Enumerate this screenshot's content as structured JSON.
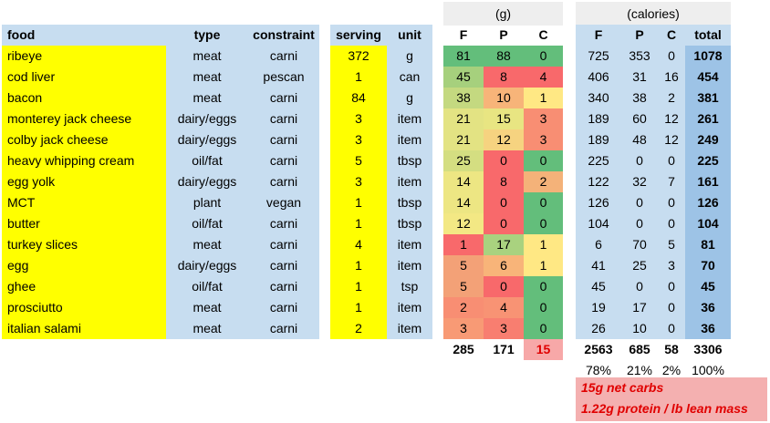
{
  "headers": {
    "food": "food",
    "type": "type",
    "constraint": "constraint",
    "serving": "serving",
    "unit": "unit",
    "grams_group": "(g)",
    "calories_group": "(calories)",
    "gF": "F",
    "gP": "P",
    "gC": "C",
    "cF": "F",
    "cP": "P",
    "cC": "C",
    "total": "total"
  },
  "rows": [
    {
      "food": "ribeye",
      "type": "meat",
      "constraint": "carni",
      "serving": "372",
      "unit": "g",
      "gF": "81",
      "gP": "88",
      "gC": "0",
      "cF": "725",
      "cP": "353",
      "cC": "0",
      "total": "1078"
    },
    {
      "food": "cod liver",
      "type": "meat",
      "constraint": "pescan",
      "serving": "1",
      "unit": "can",
      "gF": "45",
      "gP": "8",
      "gC": "4",
      "cF": "406",
      "cP": "31",
      "cC": "16",
      "total": "454"
    },
    {
      "food": "bacon",
      "type": "meat",
      "constraint": "carni",
      "serving": "84",
      "unit": "g",
      "gF": "38",
      "gP": "10",
      "gC": "1",
      "cF": "340",
      "cP": "38",
      "cC": "2",
      "total": "381"
    },
    {
      "food": "monterey jack cheese",
      "type": "dairy/eggs",
      "constraint": "carni",
      "serving": "3",
      "unit": "item",
      "gF": "21",
      "gP": "15",
      "gC": "3",
      "cF": "189",
      "cP": "60",
      "cC": "12",
      "total": "261"
    },
    {
      "food": "colby jack cheese",
      "type": "dairy/eggs",
      "constraint": "carni",
      "serving": "3",
      "unit": "item",
      "gF": "21",
      "gP": "12",
      "gC": "3",
      "cF": "189",
      "cP": "48",
      "cC": "12",
      "total": "249"
    },
    {
      "food": "heavy whipping cream",
      "type": "oil/fat",
      "constraint": "carni",
      "serving": "5",
      "unit": "tbsp",
      "gF": "25",
      "gP": "0",
      "gC": "0",
      "cF": "225",
      "cP": "0",
      "cC": "0",
      "total": "225"
    },
    {
      "food": "egg yolk",
      "type": "dairy/eggs",
      "constraint": "carni",
      "serving": "3",
      "unit": "item",
      "gF": "14",
      "gP": "8",
      "gC": "2",
      "cF": "122",
      "cP": "32",
      "cC": "7",
      "total": "161"
    },
    {
      "food": "MCT",
      "type": "plant",
      "constraint": "vegan",
      "serving": "1",
      "unit": "tbsp",
      "gF": "14",
      "gP": "0",
      "gC": "0",
      "cF": "126",
      "cP": "0",
      "cC": "0",
      "total": "126"
    },
    {
      "food": "butter",
      "type": "oil/fat",
      "constraint": "carni",
      "serving": "1",
      "unit": "tbsp",
      "gF": "12",
      "gP": "0",
      "gC": "0",
      "cF": "104",
      "cP": "0",
      "cC": "0",
      "total": "104"
    },
    {
      "food": "turkey slices",
      "type": "meat",
      "constraint": "carni",
      "serving": "4",
      "unit": "item",
      "gF": "1",
      "gP": "17",
      "gC": "1",
      "cF": "6",
      "cP": "70",
      "cC": "5",
      "total": "81"
    },
    {
      "food": "egg",
      "type": "dairy/eggs",
      "constraint": "carni",
      "serving": "1",
      "unit": "item",
      "gF": "5",
      "gP": "6",
      "gC": "1",
      "cF": "41",
      "cP": "25",
      "cC": "3",
      "total": "70"
    },
    {
      "food": "ghee",
      "type": "oil/fat",
      "constraint": "carni",
      "serving": "1",
      "unit": "tsp",
      "gF": "5",
      "gP": "0",
      "gC": "0",
      "cF": "45",
      "cP": "0",
      "cC": "0",
      "total": "45"
    },
    {
      "food": "prosciutto",
      "type": "meat",
      "constraint": "carni",
      "serving": "1",
      "unit": "item",
      "gF": "2",
      "gP": "4",
      "gC": "0",
      "cF": "19",
      "cP": "17",
      "cC": "0",
      "total": "36"
    },
    {
      "food": "italian salami",
      "type": "meat",
      "constraint": "carni",
      "serving": "2",
      "unit": "item",
      "gF": "3",
      "gP": "3",
      "gC": "0",
      "cF": "26",
      "cP": "10",
      "cC": "0",
      "total": "36"
    }
  ],
  "totals": {
    "gF": "285",
    "gP": "171",
    "gC": "15",
    "cF": "2563",
    "cP": "685",
    "cC": "58",
    "total": "3306"
  },
  "percents": {
    "cF": "78%",
    "cP": "21%",
    "cC": "2%",
    "total": "100%"
  },
  "notes": [
    "15g net carbs",
    "1.22g protein / lb lean mass"
  ],
  "colors": {
    "blue": "#c7ddf0",
    "yellow": "#ffff00",
    "gray_header": "#eeeeee",
    "note_bg": "#f4b0b0",
    "note_text": "#e00000",
    "total_col": "#9dc3e6"
  },
  "heat": {
    "gF": [
      "#63be7b",
      "#a6d07d",
      "#c4d980",
      "#e3e383",
      "#e3e383",
      "#d4de81",
      "#ede683",
      "#ede683",
      "#f3e884",
      "#f8696b",
      "#f3a177",
      "#f3a177",
      "#f88e73",
      "#f89a75"
    ],
    "gP": [
      "#63be7b",
      "#f8696b",
      "#f7b479",
      "#e8e582",
      "#f6d380",
      "#f8696b",
      "#f8696b",
      "#f8696b",
      "#f8696b",
      "#a9d27f",
      "#f8b479",
      "#f8696b",
      "#f89374",
      "#f87e70"
    ],
    "gC": [
      "#63be7b",
      "#f8696b",
      "#ffe884",
      "#f88e73",
      "#f88e73",
      "#63be7b",
      "#f4b279",
      "#63be7b",
      "#63be7b",
      "#ffe884",
      "#ffe884",
      "#63be7b",
      "#63be7b",
      "#63be7b"
    ],
    "totC": "#f7a8a8"
  }
}
